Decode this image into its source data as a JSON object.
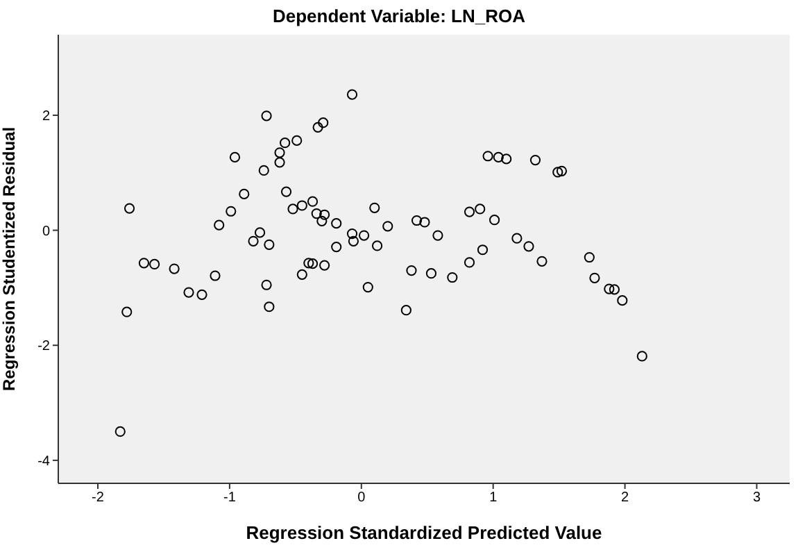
{
  "chart_data": {
    "type": "scatter",
    "title": "Dependent Variable: LN_ROA",
    "xlabel": "Regression Standardized Predicted Value",
    "ylabel": "Regression Studentized Residual",
    "xlim": [
      -2.3,
      3.25
    ],
    "ylim": [
      -4.4,
      3.4
    ],
    "xticks": [
      -2,
      -1,
      0,
      1,
      2,
      3
    ],
    "yticks": [
      -4,
      -2,
      0,
      2
    ],
    "grid": false,
    "legend": false,
    "marker": "circle",
    "series": [
      {
        "color": "#000000",
        "x": [
          -0.07,
          -0.72,
          -0.29,
          -0.33,
          -0.49,
          -0.58,
          -0.62,
          -0.62,
          -0.96,
          -0.74,
          -0.89,
          -0.57,
          -1.76,
          -0.99,
          -0.37,
          -0.45,
          -0.52,
          0.1,
          -0.34,
          -0.28,
          -0.3,
          -0.19,
          0.2,
          0.42,
          -1.08,
          -0.77,
          -0.82,
          -0.7,
          -0.07,
          -0.06,
          0.02,
          -0.19,
          0.12,
          -1.65,
          -1.57,
          -1.42,
          -1.11,
          -0.4,
          -0.37,
          -0.28,
          -0.45,
          0.38,
          -1.31,
          -1.21,
          -0.72,
          0.05,
          -1.78,
          -0.7,
          0.34,
          0.96,
          1.04,
          1.1,
          1.32,
          1.49,
          1.52,
          0.48,
          0.58,
          0.82,
          0.9,
          1.01,
          0.92,
          0.82,
          1.18,
          1.27,
          1.37,
          1.73,
          1.77,
          1.88,
          1.92,
          1.98,
          2.13,
          0.53,
          0.69,
          -1.83
        ],
        "values": [
          2.36,
          1.99,
          1.87,
          1.79,
          1.56,
          1.52,
          1.35,
          1.18,
          1.27,
          1.04,
          0.63,
          0.67,
          0.38,
          0.33,
          0.5,
          0.43,
          0.37,
          0.39,
          0.29,
          0.27,
          0.16,
          0.12,
          0.07,
          0.17,
          0.09,
          -0.04,
          -0.19,
          -0.25,
          -0.06,
          -0.19,
          -0.09,
          -0.29,
          -0.27,
          -0.57,
          -0.59,
          -0.67,
          -0.79,
          -0.57,
          -0.58,
          -0.61,
          -0.77,
          -0.7,
          -1.08,
          -1.12,
          -0.95,
          -0.99,
          -1.42,
          -1.33,
          -1.39,
          1.29,
          1.27,
          1.24,
          1.22,
          1.01,
          1.03,
          0.14,
          -0.09,
          0.32,
          0.37,
          0.18,
          -0.34,
          -0.56,
          -0.14,
          -0.28,
          -0.54,
          -0.47,
          -0.83,
          -1.02,
          -1.03,
          -1.22,
          -2.19,
          -0.75,
          -0.82,
          -3.5
        ]
      }
    ]
  }
}
